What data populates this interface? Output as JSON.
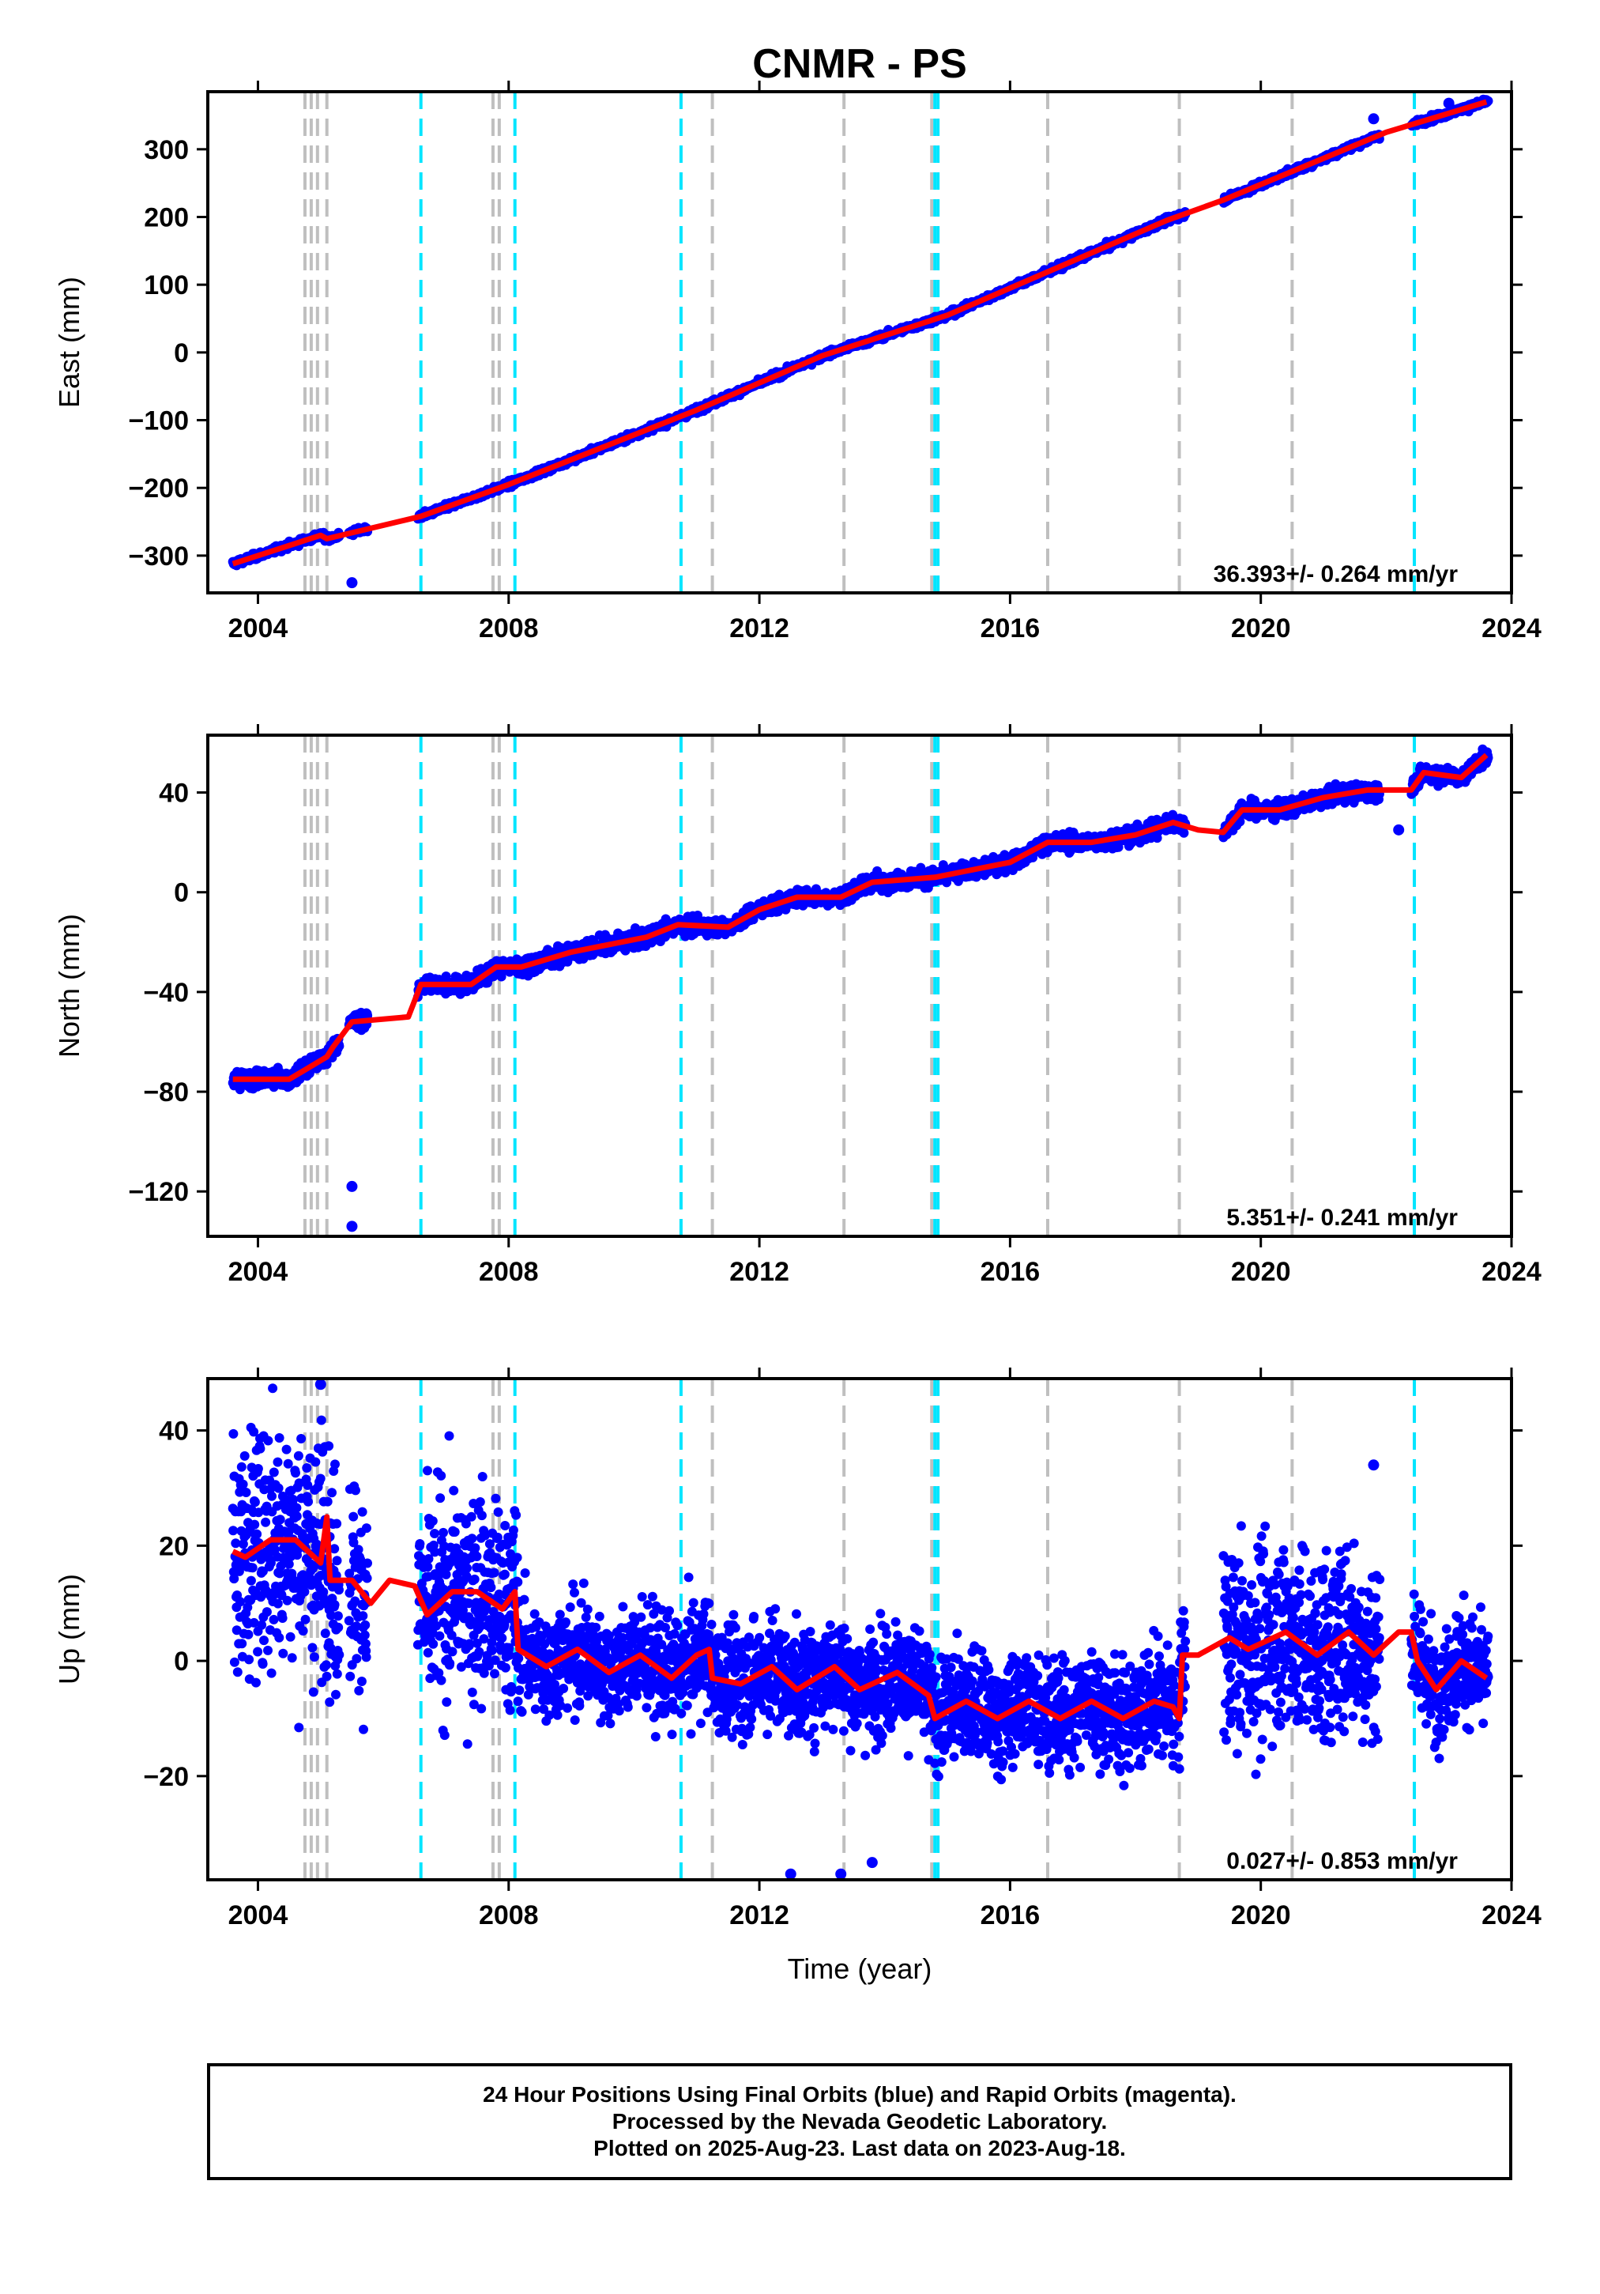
{
  "title": "CNMR - PS",
  "xlabel": "Time (year)",
  "footer": {
    "line1": "24 Hour Positions Using Final Orbits (blue) and Rapid Orbits (magenta).",
    "line2": "Processed by the Nevada Geodetic Laboratory.",
    "line3": "Plotted on 2025-Aug-23. Last data on 2023-Aug-18."
  },
  "colors": {
    "final": "#0000ff",
    "model": "#ff0000",
    "steps_equipment": "#00e5ff",
    "steps_other": "#bfbfbf"
  },
  "chart_data": [
    {
      "type": "scatter",
      "component": "East",
      "ylabel": "East (mm)",
      "xlim": [
        2003.2,
        2024.0
      ],
      "ylim": [
        -355,
        385
      ],
      "xticks": [
        "2004",
        "2008",
        "2012",
        "2016",
        "2020",
        "2024"
      ],
      "yticks": [
        "300",
        "200",
        "100",
        "0",
        "−100",
        "−200",
        "−300"
      ],
      "ytick_values": [
        300,
        200,
        100,
        0,
        -100,
        -200,
        -300
      ],
      "rate": "36.393+/- 0.264 mm/yr",
      "trend": [
        [
          2003.6,
          -312
        ],
        [
          2005.0,
          -270
        ],
        [
          2005.1,
          -275
        ],
        [
          2006.6,
          -242
        ],
        [
          2008.0,
          -195
        ],
        [
          2011.0,
          -85
        ],
        [
          2013.0,
          -5
        ],
        [
          2015.0,
          55
        ],
        [
          2018.5,
          195
        ],
        [
          2019.4,
          225
        ],
        [
          2022.0,
          325
        ],
        [
          2023.6,
          370
        ]
      ],
      "outliers": [
        [
          2005.5,
          -340
        ],
        [
          2023.0,
          368
        ],
        [
          2021.8,
          345
        ]
      ]
    },
    {
      "type": "scatter",
      "component": "North",
      "ylabel": "North (mm)",
      "xlim": [
        2003.2,
        2024.0
      ],
      "ylim": [
        -138,
        63
      ],
      "xticks": [
        "2004",
        "2008",
        "2012",
        "2016",
        "2020",
        "2024"
      ],
      "yticks": [
        "40",
        "0",
        "−40",
        "−80",
        "−120"
      ],
      "ytick_values": [
        40,
        0,
        -40,
        -80,
        -120
      ],
      "rate": "5.351+/- 0.241 mm/yr",
      "trend": [
        [
          2003.6,
          -75
        ],
        [
          2004.5,
          -75
        ],
        [
          2005.1,
          -66
        ],
        [
          2005.2,
          -62
        ],
        [
          2005.5,
          -52
        ],
        [
          2006.4,
          -50
        ],
        [
          2006.6,
          -37
        ],
        [
          2007.4,
          -37
        ],
        [
          2007.8,
          -30
        ],
        [
          2008.2,
          -30
        ],
        [
          2009.0,
          -24
        ],
        [
          2010.2,
          -18
        ],
        [
          2010.7,
          -13
        ],
        [
          2011.5,
          -14
        ],
        [
          2012.0,
          -7
        ],
        [
          2012.6,
          -2
        ],
        [
          2013.3,
          -2
        ],
        [
          2013.8,
          4
        ],
        [
          2014.8,
          6
        ],
        [
          2015.2,
          8
        ],
        [
          2016.0,
          12
        ],
        [
          2016.6,
          20
        ],
        [
          2017.3,
          20
        ],
        [
          2018.0,
          23
        ],
        [
          2018.6,
          28
        ],
        [
          2019.0,
          25
        ],
        [
          2019.4,
          24
        ],
        [
          2019.7,
          33
        ],
        [
          2020.3,
          33
        ],
        [
          2021.0,
          38
        ],
        [
          2021.7,
          41
        ],
        [
          2022.4,
          41
        ],
        [
          2022.6,
          48
        ],
        [
          2023.2,
          46
        ],
        [
          2023.6,
          55
        ]
      ],
      "outliers": [
        [
          2005.5,
          -118
        ],
        [
          2005.5,
          -134
        ],
        [
          2022.2,
          25
        ]
      ]
    },
    {
      "type": "scatter",
      "component": "Up",
      "ylabel": "Up (mm)",
      "xlim": [
        2003.2,
        2024.0
      ],
      "ylim": [
        -38,
        49
      ],
      "xticks": [
        "2004",
        "2008",
        "2012",
        "2016",
        "2020",
        "2024"
      ],
      "yticks": [
        "40",
        "20",
        "0",
        "−20"
      ],
      "ytick_values": [
        40,
        20,
        0,
        -20
      ],
      "rate": "0.027+/- 0.853 mm/yr",
      "trend": [
        [
          2003.6,
          19
        ],
        [
          2003.8,
          18
        ],
        [
          2004.2,
          21
        ],
        [
          2004.6,
          21
        ],
        [
          2005.0,
          17
        ],
        [
          2005.1,
          25
        ],
        [
          2005.15,
          14
        ],
        [
          2005.5,
          14
        ],
        [
          2005.8,
          10
        ],
        [
          2006.1,
          14
        ],
        [
          2006.5,
          13
        ],
        [
          2006.7,
          8
        ],
        [
          2007.1,
          12
        ],
        [
          2007.5,
          12
        ],
        [
          2007.9,
          9
        ],
        [
          2008.1,
          12
        ],
        [
          2008.15,
          2
        ],
        [
          2008.6,
          -1
        ],
        [
          2009.1,
          2
        ],
        [
          2009.6,
          -2
        ],
        [
          2010.1,
          1
        ],
        [
          2010.6,
          -3
        ],
        [
          2011.0,
          1
        ],
        [
          2011.2,
          2
        ],
        [
          2011.25,
          -3
        ],
        [
          2011.7,
          -4
        ],
        [
          2012.2,
          -1
        ],
        [
          2012.6,
          -5
        ],
        [
          2013.2,
          -1
        ],
        [
          2013.6,
          -5
        ],
        [
          2014.2,
          -2
        ],
        [
          2014.7,
          -6
        ],
        [
          2014.8,
          -10
        ],
        [
          2015.3,
          -7
        ],
        [
          2015.8,
          -10
        ],
        [
          2016.3,
          -7
        ],
        [
          2016.8,
          -10
        ],
        [
          2017.3,
          -7
        ],
        [
          2017.8,
          -10
        ],
        [
          2018.3,
          -7
        ],
        [
          2018.6,
          -8
        ],
        [
          2018.7,
          -10
        ],
        [
          2018.75,
          1
        ],
        [
          2019.0,
          1
        ],
        [
          2019.5,
          4
        ],
        [
          2019.8,
          2
        ],
        [
          2020.4,
          5
        ],
        [
          2020.9,
          1
        ],
        [
          2021.4,
          5
        ],
        [
          2021.8,
          1
        ],
        [
          2022.2,
          5
        ],
        [
          2022.4,
          5
        ],
        [
          2022.5,
          0
        ],
        [
          2022.8,
          -5
        ],
        [
          2023.2,
          0
        ],
        [
          2023.6,
          -3
        ]
      ],
      "outliers": [
        [
          2005.0,
          48
        ],
        [
          2021.8,
          34
        ],
        [
          2012.5,
          -37
        ],
        [
          2013.3,
          -37
        ],
        [
          2013.8,
          -35
        ]
      ]
    }
  ],
  "step_lines": {
    "equipment": [
      2006.6,
      2008.1,
      2010.75,
      2014.8,
      2014.85,
      2022.45
    ],
    "other": [
      2004.75,
      2004.85,
      2004.95,
      2005.1,
      2007.75,
      2007.85,
      2011.25,
      2013.35,
      2014.75,
      2016.6,
      2018.7,
      2020.5
    ]
  }
}
